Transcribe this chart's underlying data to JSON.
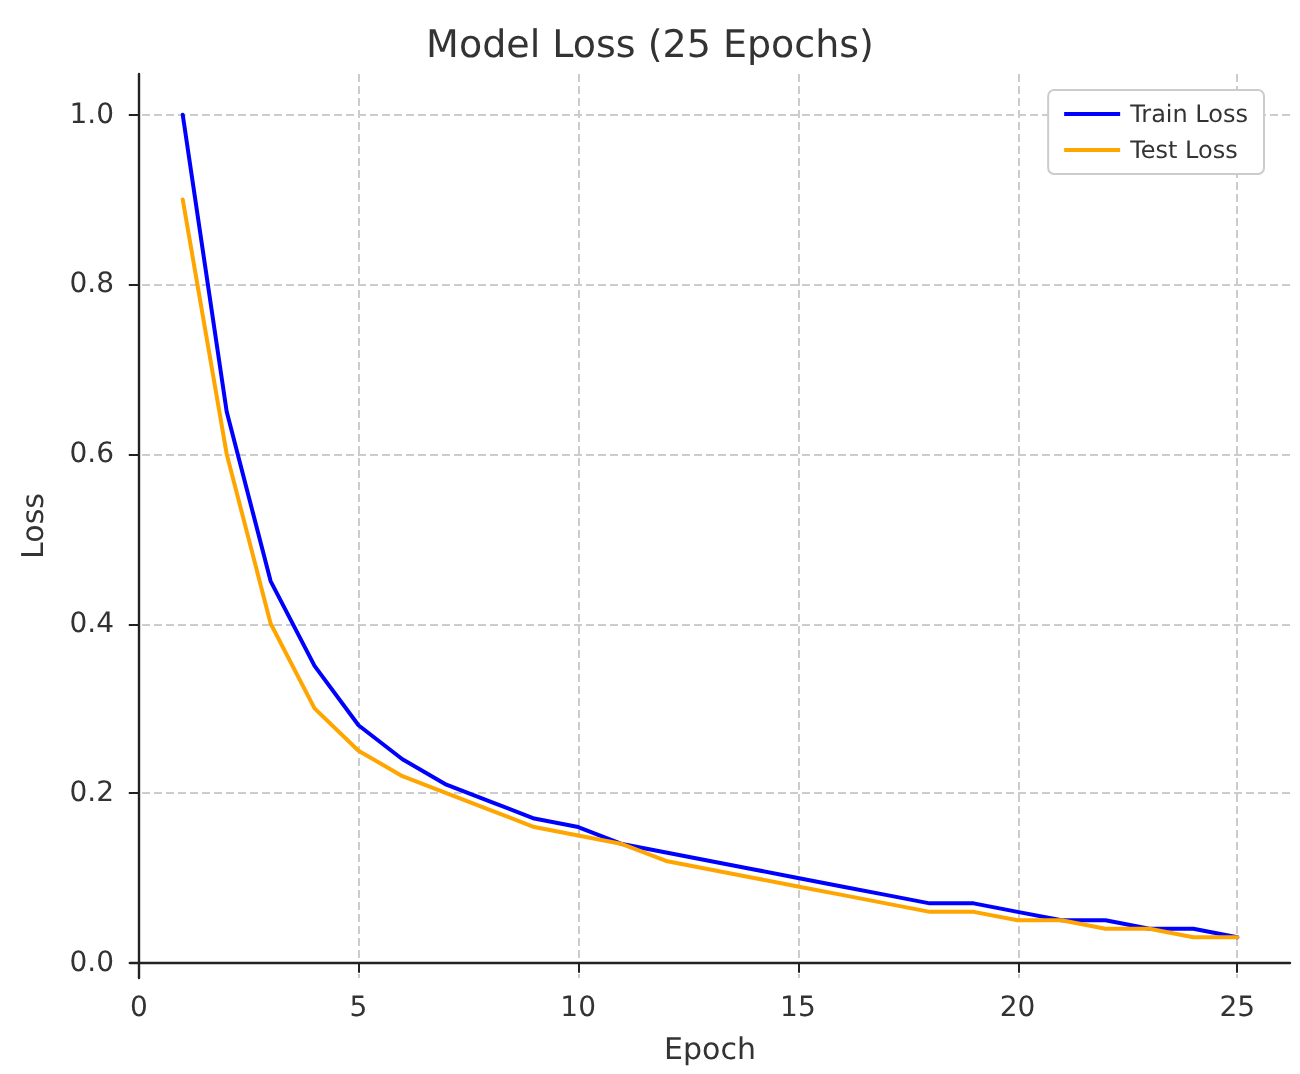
{
  "chart_data": {
    "type": "line",
    "title": "Model Loss (25 Epochs)",
    "xlabel": "Epoch",
    "ylabel": "Loss",
    "x": [
      1,
      2,
      3,
      4,
      5,
      6,
      7,
      8,
      9,
      10,
      11,
      12,
      13,
      14,
      15,
      16,
      17,
      18,
      19,
      20,
      21,
      22,
      23,
      24,
      25
    ],
    "series": [
      {
        "name": "Train Loss",
        "color": "#0000ff",
        "values": [
          1.0,
          0.65,
          0.45,
          0.35,
          0.28,
          0.24,
          0.21,
          0.19,
          0.17,
          0.16,
          0.14,
          0.13,
          0.12,
          0.11,
          0.1,
          0.09,
          0.08,
          0.07,
          0.07,
          0.06,
          0.05,
          0.05,
          0.04,
          0.04,
          0.03
        ]
      },
      {
        "name": "Test Loss",
        "color": "#ffa500",
        "values": [
          0.9,
          0.6,
          0.4,
          0.3,
          0.25,
          0.22,
          0.2,
          0.18,
          0.16,
          0.15,
          0.14,
          0.12,
          0.11,
          0.1,
          0.09,
          0.08,
          0.07,
          0.06,
          0.06,
          0.05,
          0.05,
          0.04,
          0.04,
          0.03,
          0.03
        ]
      }
    ],
    "xlim": [
      -0.2,
      26.2
    ],
    "xticks": [
      0,
      5,
      10,
      15,
      20,
      25
    ],
    "ylim": [
      -0.018,
      1.048
    ],
    "yticks": [
      {
        "value": 0,
        "label": "0.0"
      },
      {
        "value": 0.2,
        "label": "0.2"
      },
      {
        "value": 0.4,
        "label": "0.4"
      },
      {
        "value": 0.6,
        "label": "0.6"
      },
      {
        "value": 0.8,
        "label": "0.8"
      },
      {
        "value": 1,
        "label": "1.0"
      }
    ],
    "grid": true,
    "legend": "top right",
    "marker": "none",
    "line_style": "solid"
  }
}
